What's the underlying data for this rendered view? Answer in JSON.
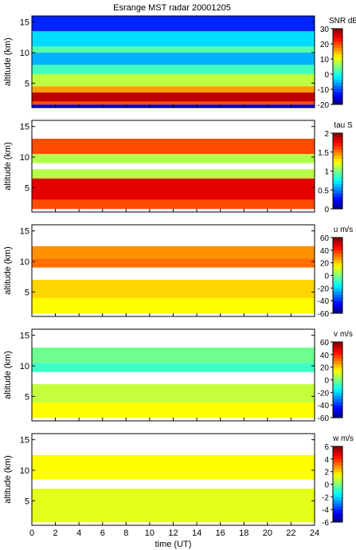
{
  "chart_data": [
    {
      "type": "heatmap",
      "title": "Esrange MST radar 20001205",
      "quantity": "SNR",
      "colorbar_label": "SNR dB",
      "colorbar_ticks": [
        -20,
        -10,
        0,
        10,
        20,
        30
      ],
      "clim": [
        -20,
        30
      ],
      "xlabel": "",
      "ylabel": "altitude (km)",
      "xlim": [
        0,
        24
      ],
      "ylim": [
        1,
        16
      ],
      "yticks": [
        5,
        10,
        15
      ],
      "layers": [
        {
          "bottom": 1,
          "top": 1.5,
          "value": -15
        },
        {
          "bottom": 1.5,
          "top": 2.0,
          "value": 20
        },
        {
          "bottom": 2.0,
          "top": 3.5,
          "value": 27
        },
        {
          "bottom": 3.5,
          "top": 4.5,
          "value": 16
        },
        {
          "bottom": 4.5,
          "top": 6.5,
          "value": 8
        },
        {
          "bottom": 6.5,
          "top": 8.0,
          "value": 2
        },
        {
          "bottom": 8.0,
          "top": 10.0,
          "value": -5
        },
        {
          "bottom": 10.0,
          "top": 11.0,
          "value": 3
        },
        {
          "bottom": 11.0,
          "top": 13.5,
          "value": -3
        },
        {
          "bottom": 13.5,
          "top": 16.0,
          "value": -12
        }
      ]
    },
    {
      "type": "heatmap",
      "quantity": "tau",
      "colorbar_label": "tau S",
      "colorbar_ticks": [
        0,
        0.5,
        1,
        1.5,
        2
      ],
      "clim": [
        0,
        2
      ],
      "xlabel": "",
      "ylabel": "altitude (km)",
      "xlim": [
        0,
        24
      ],
      "ylim": [
        1,
        16
      ],
      "yticks": [
        5,
        10,
        15
      ],
      "layers": [
        {
          "bottom": 1.5,
          "top": 3.0,
          "value": 1.6
        },
        {
          "bottom": 3.0,
          "top": 6.5,
          "value": 1.8
        },
        {
          "bottom": 6.5,
          "top": 8.0,
          "value": 1.1
        },
        {
          "bottom": 9.0,
          "top": 10.5,
          "value": 1.1
        },
        {
          "bottom": 10.5,
          "top": 13.0,
          "value": 1.6
        }
      ]
    },
    {
      "type": "heatmap",
      "quantity": "u",
      "colorbar_label": "u m/s",
      "colorbar_ticks": [
        -60,
        -40,
        -20,
        0,
        20,
        40,
        60
      ],
      "clim": [
        -60,
        60
      ],
      "xlabel": "",
      "ylabel": "altitude (km)",
      "xlim": [
        0,
        24
      ],
      "ylim": [
        1,
        16
      ],
      "yticks": [
        5,
        10,
        15
      ],
      "layers": [
        {
          "bottom": 1.5,
          "top": 4.0,
          "value": 15
        },
        {
          "bottom": 4.0,
          "top": 7.0,
          "value": 20
        },
        {
          "bottom": 9.0,
          "top": 10.5,
          "value": 32
        },
        {
          "bottom": 10.5,
          "top": 12.5,
          "value": 28
        }
      ]
    },
    {
      "type": "heatmap",
      "quantity": "v",
      "colorbar_label": "v m/s",
      "colorbar_ticks": [
        -60,
        -40,
        -20,
        0,
        20,
        40,
        60
      ],
      "clim": [
        -60,
        60
      ],
      "xlabel": "",
      "ylabel": "altitude (km)",
      "xlim": [
        0,
        24
      ],
      "ylim": [
        1,
        16
      ],
      "yticks": [
        5,
        10,
        15
      ],
      "layers": [
        {
          "bottom": 1.5,
          "top": 4.0,
          "value": 15
        },
        {
          "bottom": 4.0,
          "top": 7.0,
          "value": 8
        },
        {
          "bottom": 9.0,
          "top": 10.5,
          "value": -8
        },
        {
          "bottom": 10.5,
          "top": 13.0,
          "value": -2
        }
      ]
    },
    {
      "type": "heatmap",
      "quantity": "w",
      "colorbar_label": "w m/s",
      "colorbar_ticks": [
        -6,
        -4,
        -2,
        0,
        2,
        4,
        6
      ],
      "clim": [
        -6,
        6
      ],
      "xlabel": "time (UT)",
      "ylabel": "altitude (km)",
      "xlim": [
        0,
        24
      ],
      "ylim": [
        1,
        16
      ],
      "yticks": [
        5,
        10,
        15
      ],
      "xticks": [
        0,
        2,
        4,
        6,
        8,
        10,
        12,
        14,
        16,
        18,
        20,
        22,
        24
      ],
      "layers": [
        {
          "bottom": 1.5,
          "top": 7.0,
          "value": 1.2
        },
        {
          "bottom": 8.5,
          "top": 12.5,
          "value": 1.5
        }
      ]
    }
  ]
}
